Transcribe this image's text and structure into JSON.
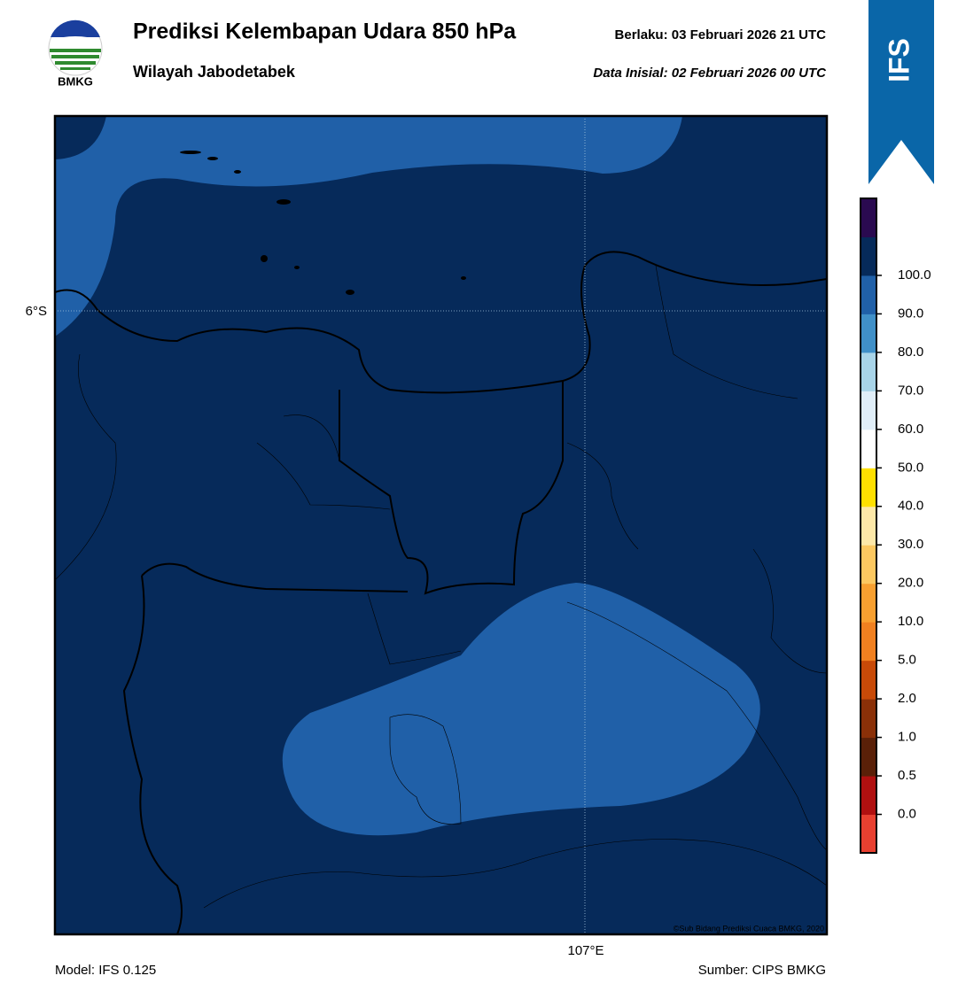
{
  "header": {
    "logo_text": "BMKG",
    "title": "Prediksi Kelembapan Udara 850 hPa",
    "subtitle": "Wilayah Jabodetabek",
    "valid": "Berlaku:  03 Februari 2026 21 UTC",
    "initial": "Data Inisial:  02 Februari 2026 00 UTC",
    "model_badge": "IFS"
  },
  "map": {
    "lat_label": "6°S",
    "lon_label": "107°E",
    "copyright": "©Sub Bidang Prediksi Cuaca BMKG, 2020"
  },
  "colorbar": {
    "colors": [
      "#e84030",
      "#b01010",
      "#5a2008",
      "#8a3008",
      "#c84a08",
      "#f08020",
      "#f8a030",
      "#fcc860",
      "#fde8a8",
      "#ffe000",
      "#ffffff",
      "#e0eef8",
      "#a8d4e8",
      "#4090c8",
      "#2060a8",
      "#062a5a",
      "#2a0a50"
    ],
    "ticks": [
      {
        "value": 0,
        "label": "0.0"
      },
      {
        "value": 0.5,
        "label": "0.5"
      },
      {
        "value": 1,
        "label": "1.0"
      },
      {
        "value": 2,
        "label": "2.0"
      },
      {
        "value": 5,
        "label": "5.0"
      },
      {
        "value": 10,
        "label": "10.0"
      },
      {
        "value": 20,
        "label": "20.0"
      },
      {
        "value": 30,
        "label": "30.0"
      },
      {
        "value": 40,
        "label": "40.0"
      },
      {
        "value": 50,
        "label": "50.0"
      },
      {
        "value": 60,
        "label": "60.0"
      },
      {
        "value": 70,
        "label": "70.0"
      },
      {
        "value": 80,
        "label": "80.0"
      },
      {
        "value": 90,
        "label": "90.0"
      },
      {
        "value": 100,
        "label": "100.0"
      }
    ]
  },
  "footer": {
    "model": "Model: IFS 0.125",
    "source": "Sumber: CIPS BMKG"
  }
}
